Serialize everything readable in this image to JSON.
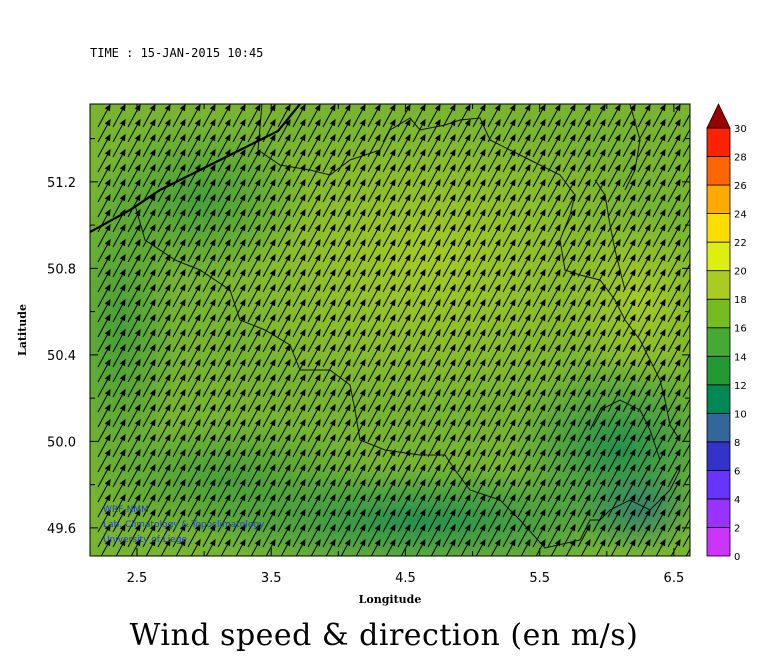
{
  "time_label": "TIME : 15-JAN-2015 10:45",
  "title": "Wind speed & direction (en m/s)",
  "x_axis": {
    "label": "Longitude",
    "range": [
      2.15,
      6.62
    ],
    "ticks": [
      "2.5",
      "3.5",
      "4.5",
      "5.5",
      "6.5"
    ],
    "tick_values": [
      2.5,
      3.5,
      4.5,
      5.5,
      6.5
    ]
  },
  "y_axis": {
    "label": "Latitude",
    "range": [
      49.47,
      51.56
    ],
    "ticks": [
      "49.6",
      "50.0",
      "50.4",
      "50.8",
      "51.2"
    ],
    "tick_values": [
      49.6,
      50.0,
      50.4,
      50.8,
      51.2
    ]
  },
  "credits": [
    "WRF-NMM",
    "Lab. Climatology & Topoclimatology",
    "University of Liege"
  ],
  "colorbar": {
    "labels": [
      "0",
      "2",
      "4",
      "6",
      "8",
      "10",
      "12",
      "14",
      "16",
      "18",
      "20",
      "22",
      "24",
      "26",
      "28",
      "30"
    ],
    "colors": [
      "#cc33ff",
      "#9933ff",
      "#6633ff",
      "#3333cc",
      "#336699",
      "#008855",
      "#229933",
      "#44aa33",
      "#77bb22",
      "#aacc22",
      "#ddee11",
      "#ffdd00",
      "#ffaa00",
      "#ff6600",
      "#ff2200",
      "#cc0000",
      "#990000"
    ]
  },
  "chart_data": {
    "type": "map",
    "variable": "wind speed (m/s)",
    "wind_direction": "from south-west",
    "speed_field": [
      {
        "lon": 2.3,
        "lat": 49.8,
        "speed": 13
      },
      {
        "lon": 3.0,
        "lat": 50.0,
        "speed": 14
      },
      {
        "lon": 3.5,
        "lat": 50.4,
        "speed": 14
      },
      {
        "lon": 4.0,
        "lat": 50.8,
        "speed": 15
      },
      {
        "lon": 4.5,
        "lat": 51.3,
        "speed": 15
      },
      {
        "lon": 5.0,
        "lat": 50.6,
        "speed": 16
      },
      {
        "lon": 5.7,
        "lat": 51.0,
        "speed": 16
      },
      {
        "lon": 6.2,
        "lat": 50.6,
        "speed": 17
      },
      {
        "lon": 6.0,
        "lat": 50.1,
        "speed": 13
      },
      {
        "lon": 6.2,
        "lat": 49.7,
        "speed": 10
      },
      {
        "lon": 4.7,
        "lat": 49.7,
        "speed": 12
      },
      {
        "lon": 3.0,
        "lat": 51.4,
        "speed": 14
      }
    ]
  }
}
